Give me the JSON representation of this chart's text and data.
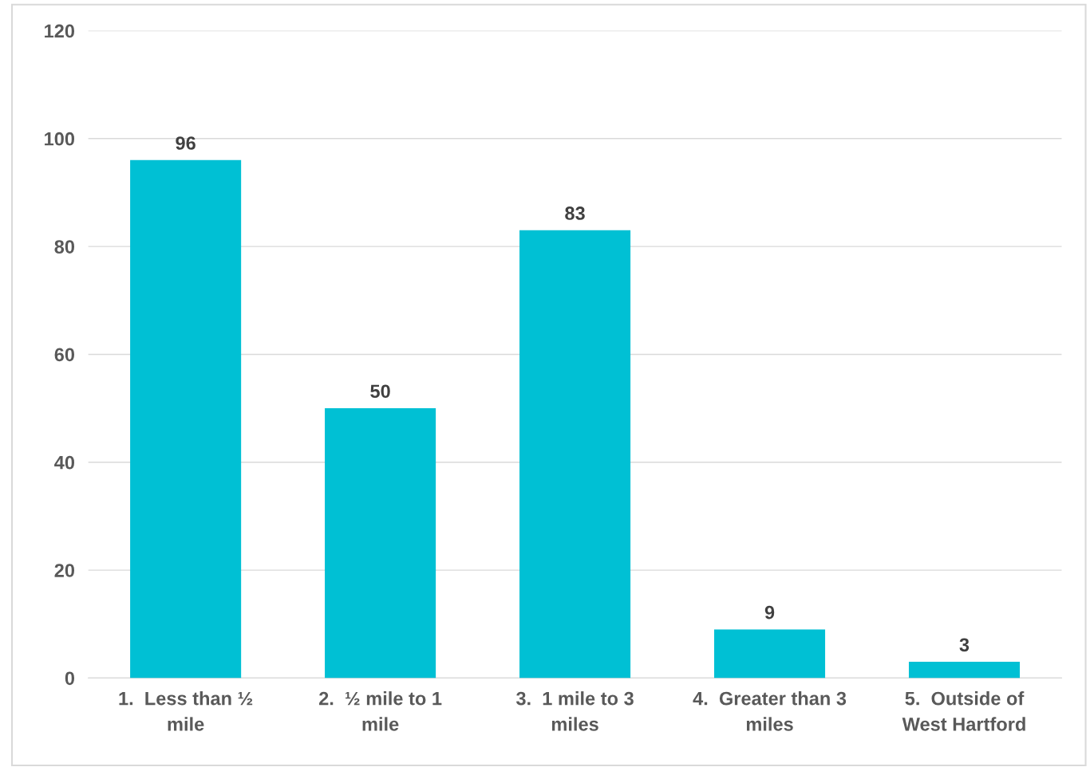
{
  "chart_data": {
    "type": "bar",
    "categories": [
      "1.  Less than ½\nmile",
      "2.  ½ mile to 1\nmile",
      "3.  1 mile to 3\nmiles",
      "4.  Greater than 3\nmiles",
      "5.  Outside of\nWest Hartford"
    ],
    "values": [
      96,
      50,
      83,
      9,
      3
    ],
    "color": "#00c0d4",
    "ylim": [
      0,
      120
    ],
    "yticks": [
      0,
      20,
      40,
      60,
      80,
      100,
      120
    ],
    "grid": "y",
    "data_labels": true
  }
}
